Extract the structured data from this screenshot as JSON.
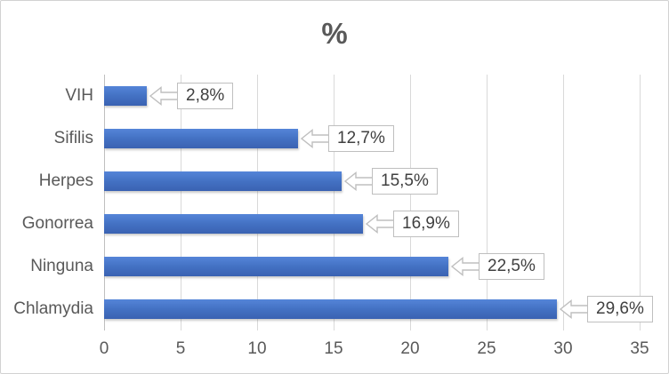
{
  "title": "%",
  "chart_data": {
    "type": "bar",
    "orientation": "horizontal",
    "title": "%",
    "xlabel": "",
    "ylabel": "",
    "categories": [
      "VIH",
      "Sifilis",
      "Herpes",
      "Gonorrea",
      "Ninguna",
      "Chlamydia"
    ],
    "values": [
      2.8,
      12.7,
      15.5,
      16.9,
      22.5,
      29.6
    ],
    "data_labels": [
      "2,8%",
      "12,7%",
      "15,5%",
      "16,9%",
      "22,5%",
      "29,6%"
    ],
    "xlim": [
      0,
      35
    ],
    "x_ticks": [
      "0",
      "5",
      "10",
      "15",
      "20",
      "25",
      "30",
      "35"
    ],
    "grid": true,
    "legend": false,
    "colors": {
      "bar": "#4472C4",
      "bar_gradient_top": "#5585D8",
      "bar_gradient_bottom": "#3A62B2",
      "gridline": "#D9D9D9",
      "axis_line": "#BFBFBF",
      "axis_text": "#595959",
      "title_text": "#595959",
      "callout_border": "#BFBFBF",
      "callout_text": "#404040",
      "chart_border": "#D2D2D2",
      "background": "#FFFFFF"
    }
  }
}
